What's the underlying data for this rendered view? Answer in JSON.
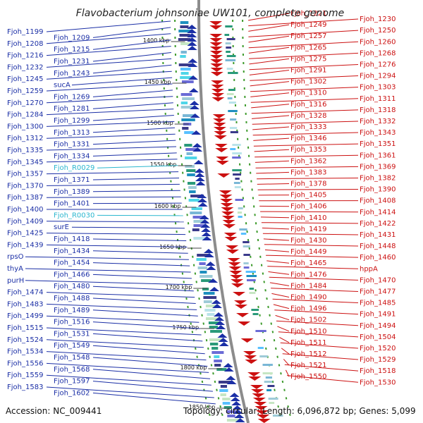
{
  "title": "Flavobacterium johnsoniae UW101, complete genome",
  "footer": {
    "accession": "Accession: NC_009441",
    "summary": "Topology: circular; Length: 6,096,872 bp; Genes: 5,099"
  },
  "colors": {
    "forward_strand": "#1b2fa6",
    "reverse_strand": "#cc1111",
    "rna_genes": "#2bb7cf",
    "backbone": "#8c8c8c",
    "orf_marks": "#3c9a2a"
  },
  "kbp_marks": [
    "1400 kbp",
    "1450 kbp",
    "1500 kbp",
    "1550 kbp",
    "1600 kbp",
    "1650 kbp",
    "1700 kbp",
    "1750 kbp",
    "1800 kbp",
    "1850 kbp"
  ],
  "left_labels": [
    "Fjoh_1199",
    "Fjoh_1209",
    "Fjoh_1208",
    "Fjoh_1215",
    "Fjoh_1216",
    "Fjoh_1231",
    "Fjoh_1232",
    "Fjoh_1243",
    "Fjoh_1245",
    "sucA",
    "Fjoh_1259",
    "Fjoh_1269",
    "Fjoh_1270",
    "Fjoh_1281",
    "Fjoh_1284",
    "Fjoh_1299",
    "Fjoh_1300",
    "Fjoh_1313",
    "Fjoh_1312",
    "Fjoh_1331",
    "Fjoh_1335",
    "Fjoh_1334",
    "Fjoh_1345",
    "Fjoh_R0029",
    "Fjoh_1357",
    "Fjoh_1371",
    "Fjoh_1370",
    "Fjoh_1389",
    "Fjoh_1387",
    "Fjoh_1401",
    "Fjoh_1400",
    "Fjoh_R0030",
    "Fjoh_1409",
    "surE",
    "Fjoh_1425",
    "Fjoh_1418",
    "Fjoh_1439",
    "Fjoh_1434",
    "rpsO",
    "Fjoh_1454",
    "thyA",
    "Fjoh_1466",
    "purH",
    "Fjoh_1480",
    "Fjoh_1474",
    "Fjoh_1488",
    "Fjoh_1483",
    "Fjoh_1489",
    "Fjoh_1499",
    "Fjoh_1516",
    "Fjoh_1515",
    "Fjoh_1531",
    "Fjoh_1524",
    "Fjoh_1549",
    "Fjoh_1534",
    "Fjoh_1548",
    "Fjoh_1556",
    "Fjoh_1568",
    "Fjoh_1559",
    "Fjoh_1597",
    "Fjoh_1583",
    "Fjoh_1602"
  ],
  "right_labels": [
    "Fjoh_1221",
    "Fjoh_1230",
    "Fjoh_1249",
    "Fjoh_1250",
    "Fjoh_1257",
    "Fjoh_1260",
    "Fjoh_1265",
    "Fjoh_1268",
    "Fjoh_1275",
    "Fjoh_1276",
    "Fjoh_1291",
    "Fjoh_1294",
    "Fjoh_1302",
    "Fjoh_1303",
    "Fjoh_1310",
    "Fjoh_1311",
    "Fjoh_1316",
    "Fjoh_1318",
    "Fjoh_1328",
    "Fjoh_1332",
    "Fjoh_1333",
    "Fjoh_1343",
    "Fjoh_1346",
    "Fjoh_1351",
    "Fjoh_1353",
    "Fjoh_1361",
    "Fjoh_1362",
    "Fjoh_1369",
    "Fjoh_1383",
    "Fjoh_1382",
    "Fjoh_1378",
    "Fjoh_1390",
    "Fjoh_1405",
    "Fjoh_1408",
    "Fjoh_1406",
    "Fjoh_1414",
    "Fjoh_1410",
    "Fjoh_1422",
    "Fjoh_1419",
    "Fjoh_1431",
    "Fjoh_1430",
    "Fjoh_1448",
    "Fjoh_1449",
    "Fjoh_1460",
    "Fjoh_1465",
    "hppA",
    "Fjoh_1476",
    "Fjoh_1470",
    "Fjoh_1484",
    "Fjoh_1477",
    "Fjoh_1490",
    "Fjoh_1485",
    "Fjoh_1496",
    "Fjoh_1491",
    "Fjoh_1502",
    "Fjoh_1494",
    "Fjoh_1510",
    "Fjoh_1504",
    "Fjoh_1511",
    "Fjoh_1520",
    "Fjoh_1512",
    "Fjoh_1529",
    "Fjoh_1521",
    "Fjoh_1518",
    "Fjoh_1550",
    "Fjoh_1530"
  ]
}
